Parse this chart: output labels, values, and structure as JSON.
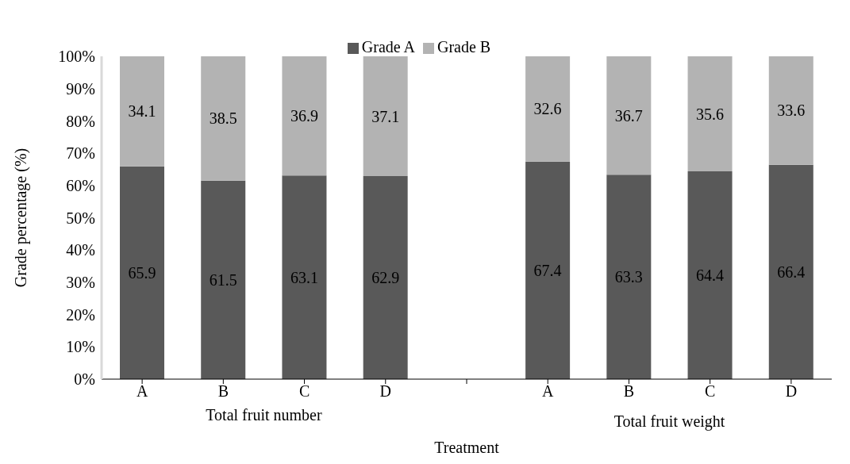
{
  "chart_data": {
    "type": "bar",
    "stacked": true,
    "xlabel": "Treatment",
    "ylabel": "Grade percentage (%)",
    "categories": [
      "A",
      "B",
      "C",
      "D",
      null,
      "A",
      "B",
      "C",
      "D"
    ],
    "series": [
      {
        "name": "Grade A",
        "color": "#595959",
        "values": [
          65.9,
          61.5,
          63.1,
          62.9,
          null,
          67.4,
          63.3,
          64.4,
          66.4
        ]
      },
      {
        "name": "Grade B",
        "color": "#b3b3b3",
        "values": [
          34.1,
          38.5,
          36.9,
          37.1,
          null,
          32.6,
          36.7,
          35.6,
          33.6
        ]
      }
    ],
    "ylim": [
      0,
      100
    ],
    "yticks": [
      {
        "value": 0,
        "label": "0%"
      },
      {
        "value": 10,
        "label": "10%"
      },
      {
        "value": 20,
        "label": "20%"
      },
      {
        "value": 30,
        "label": "30%"
      },
      {
        "value": 40,
        "label": "40%"
      },
      {
        "value": 50,
        "label": "50%"
      },
      {
        "value": 60,
        "label": "60%"
      },
      {
        "value": 70,
        "label": "70%"
      },
      {
        "value": 80,
        "label": "80%"
      },
      {
        "value": 90,
        "label": "90%"
      },
      {
        "value": 100,
        "label": "100%"
      }
    ],
    "data_labels": true,
    "legend": "top",
    "annotations": [
      "Total fruit number",
      "Total fruit weight"
    ]
  }
}
